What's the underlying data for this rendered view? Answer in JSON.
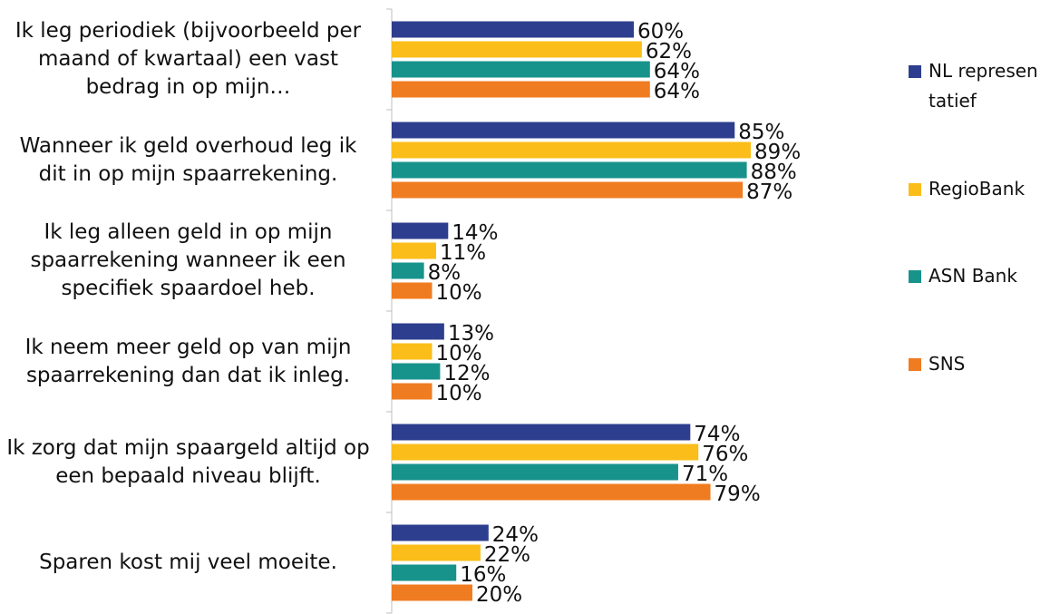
{
  "chart_data": {
    "type": "bar",
    "orientation": "horizontal",
    "categories": [
      "Ik leg periodiek (bijvoorbeeld per maand of kwartaal) een vast bedrag in op mijn…",
      "Wanneer ik geld overhoud leg ik dit in op mijn spaarrekening.",
      "Ik leg alleen geld in op mijn spaarrekening wanneer ik een specifiek spaardoel heb.",
      "Ik neem meer geld op van mijn spaarrekening dan dat ik inleg.",
      "Ik zorg dat mijn spaargeld altijd op een bepaald niveau blijft.",
      "Sparen kost mij veel moeite."
    ],
    "series": [
      {
        "name": "NL representatief",
        "color": "#2e3e8e",
        "values": [
          60,
          85,
          14,
          13,
          74,
          24
        ],
        "value_labels": [
          "60%",
          "85%",
          "14%",
          "13%",
          "74%",
          "24%"
        ]
      },
      {
        "name": "RegioBank",
        "color": "#fbbd19",
        "values": [
          62,
          89,
          11,
          10,
          76,
          22
        ],
        "value_labels": [
          "62%",
          "89%",
          "11%",
          "10%",
          "76%",
          "22%"
        ]
      },
      {
        "name": "ASN Bank",
        "color": "#17938b",
        "values": [
          64,
          88,
          8,
          12,
          71,
          16
        ],
        "value_labels": [
          "64%",
          "88%",
          "8%",
          "12%",
          "71%",
          "16%"
        ]
      },
      {
        "name": "SNS",
        "color": "#f07c21",
        "values": [
          64,
          87,
          10,
          10,
          79,
          20
        ],
        "value_labels": [
          "64%",
          "87%",
          "10%",
          "10%",
          "79%",
          "20%"
        ]
      }
    ],
    "xlim": [
      0,
      100
    ]
  }
}
